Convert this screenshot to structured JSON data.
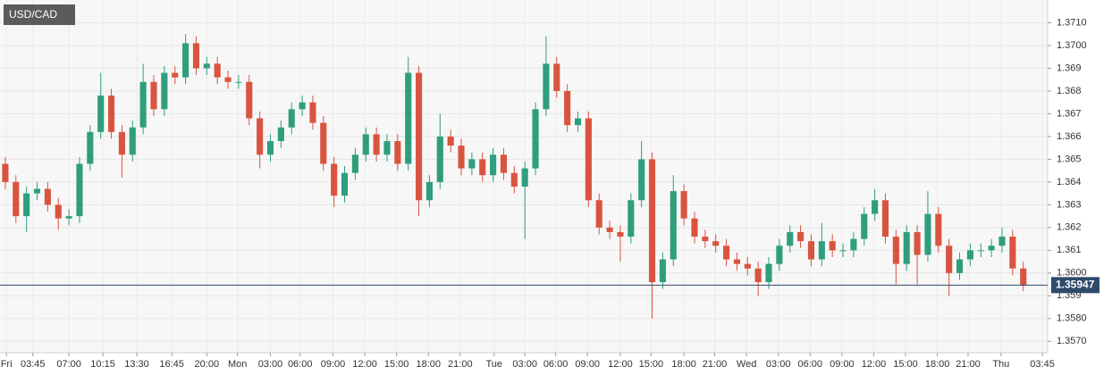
{
  "chart_data": {
    "type": "candlestick",
    "title": "USD/CAD",
    "up_color": "#2f9e7c",
    "down_color": "#d9543f",
    "grid": true,
    "last_price": 1.35947,
    "last_price_color": "#2e4a6b",
    "ylim": [
      1.3565,
      1.372
    ],
    "yticks": [
      {
        "value": 1.357,
        "label": "1.3570"
      },
      {
        "value": 1.358,
        "label": "1.3580"
      },
      1.359,
      {
        "value": 1.36,
        "label": "1.3600"
      },
      1.361,
      1.362,
      1.363,
      1.364,
      1.365,
      1.366,
      1.367,
      1.368,
      1.369,
      {
        "value": 1.37,
        "label": "1.3700"
      },
      {
        "value": 1.371,
        "label": "1.3710"
      }
    ],
    "xlim": [
      0,
      98.8
    ],
    "xticks": [
      {
        "value": 0.6,
        "label": "Fri"
      },
      {
        "value": 3.1,
        "label": "03:45"
      },
      {
        "value": 6.5,
        "label": "07:00"
      },
      {
        "value": 9.7,
        "label": "10:15"
      },
      {
        "value": 12.9,
        "label": "13:30"
      },
      {
        "value": 16.2,
        "label": "16:45"
      },
      {
        "value": 19.5,
        "label": "20:00"
      },
      {
        "value": 22.4,
        "label": "Mon"
      },
      {
        "value": 25.5,
        "label": "03:00"
      },
      {
        "value": 28.3,
        "label": "06:00"
      },
      {
        "value": 31.4,
        "label": "09:00"
      },
      {
        "value": 34.4,
        "label": "12:00"
      },
      {
        "value": 37.4,
        "label": "15:00"
      },
      {
        "value": 40.4,
        "label": "18:00"
      },
      {
        "value": 43.4,
        "label": "21:00"
      },
      {
        "value": 46.6,
        "label": "Tue"
      },
      {
        "value": 49.5,
        "label": "03:00"
      },
      {
        "value": 52.4,
        "label": "06:00"
      },
      {
        "value": 55.4,
        "label": "09:00"
      },
      {
        "value": 58.5,
        "label": "12:00"
      },
      {
        "value": 61.4,
        "label": "15:00"
      },
      {
        "value": 64.5,
        "label": "18:00"
      },
      {
        "value": 67.4,
        "label": "21:00"
      },
      {
        "value": 70.4,
        "label": "Wed"
      },
      {
        "value": 73.4,
        "label": "03:00"
      },
      {
        "value": 76.4,
        "label": "06:00"
      },
      {
        "value": 79.4,
        "label": "09:00"
      },
      {
        "value": 82.4,
        "label": "12:00"
      },
      {
        "value": 85.4,
        "label": "15:00"
      },
      {
        "value": 88.4,
        "label": "18:00"
      },
      {
        "value": 91.3,
        "label": "21:00"
      },
      {
        "value": 94.4,
        "label": "Thu"
      },
      {
        "value": 98.3,
        "label": "03:45"
      }
    ],
    "open": [
      1.3648,
      1.364,
      1.3625,
      1.3635,
      1.3637,
      1.363,
      1.3624,
      1.3625,
      1.3648,
      1.3662,
      1.3678,
      1.3662,
      1.3652,
      1.3664,
      1.3684,
      1.3672,
      1.3688,
      1.3686,
      1.3701,
      1.369,
      1.3692,
      1.3686,
      1.3684,
      1.3684,
      1.3668,
      1.3652,
      1.3658,
      1.3664,
      1.3672,
      1.3675,
      1.3666,
      1.3648,
      1.3634,
      1.3644,
      1.3652,
      1.3661,
      1.3652,
      1.3658,
      1.3648,
      1.3688,
      1.3632,
      1.364,
      1.366,
      1.3656,
      1.3646,
      1.365,
      1.3643,
      1.3652,
      1.3644,
      1.3638,
      1.3646,
      1.3672,
      1.3692,
      1.368,
      1.3665,
      1.3668,
      1.3632,
      1.362,
      1.3618,
      1.3616,
      1.3632,
      1.365,
      1.3596,
      1.3606,
      1.3636,
      1.3624,
      1.3616,
      1.3614,
      1.3612,
      1.3606,
      1.3604,
      1.3602,
      1.3596,
      1.3604,
      1.3612,
      1.3618,
      1.3614,
      1.3606,
      1.3614,
      1.361,
      1.361,
      1.3615,
      1.3626,
      1.3632,
      1.3616,
      1.3604,
      1.3618,
      1.3608,
      1.3626,
      1.3612,
      1.36,
      1.3606,
      1.361,
      1.361,
      1.3612,
      1.3616,
      1.3602
    ],
    "high": [
      1.3651,
      1.3643,
      1.3638,
      1.364,
      1.364,
      1.3633,
      1.3628,
      1.3651,
      1.3665,
      1.3688,
      1.3681,
      1.3665,
      1.3667,
      1.3692,
      1.3687,
      1.3691,
      1.3691,
      1.3705,
      1.3704,
      1.3695,
      1.3695,
      1.3689,
      1.3687,
      1.3687,
      1.3671,
      1.3661,
      1.3667,
      1.3675,
      1.3678,
      1.3678,
      1.3669,
      1.3651,
      1.3647,
      1.3655,
      1.3664,
      1.3664,
      1.3661,
      1.3661,
      1.3695,
      1.3691,
      1.3643,
      1.367,
      1.3663,
      1.3659,
      1.3653,
      1.3653,
      1.3655,
      1.3655,
      1.3647,
      1.3649,
      1.3675,
      1.3704,
      1.3695,
      1.3683,
      1.3671,
      1.3671,
      1.3635,
      1.3623,
      1.3621,
      1.3635,
      1.3658,
      1.3653,
      1.3609,
      1.3643,
      1.3639,
      1.3627,
      1.3619,
      1.3617,
      1.3615,
      1.3609,
      1.3607,
      1.3605,
      1.3607,
      1.3615,
      1.3621,
      1.3621,
      1.3617,
      1.3622,
      1.3617,
      1.3613,
      1.3618,
      1.3629,
      1.3637,
      1.3635,
      1.3619,
      1.3621,
      1.3621,
      1.3636,
      1.3629,
      1.3615,
      1.3609,
      1.3613,
      1.3613,
      1.3615,
      1.362,
      1.3619,
      1.3605
    ],
    "low": [
      1.3637,
      1.3622,
      1.3618,
      1.3632,
      1.3627,
      1.3619,
      1.3621,
      1.3622,
      1.3645,
      1.3659,
      1.3659,
      1.3642,
      1.3649,
      1.3661,
      1.3669,
      1.3669,
      1.3683,
      1.3683,
      1.3687,
      1.3687,
      1.3683,
      1.3681,
      1.3681,
      1.3665,
      1.3646,
      1.3649,
      1.3655,
      1.3661,
      1.3669,
      1.3663,
      1.3645,
      1.3629,
      1.3631,
      1.3641,
      1.3649,
      1.3649,
      1.3649,
      1.3645,
      1.3645,
      1.3625,
      1.3629,
      1.3637,
      1.3653,
      1.3643,
      1.3643,
      1.364,
      1.364,
      1.3641,
      1.3635,
      1.3615,
      1.3643,
      1.3669,
      1.3677,
      1.3662,
      1.3662,
      1.3629,
      1.3617,
      1.3615,
      1.3605,
      1.3613,
      1.3629,
      1.358,
      1.3593,
      1.3603,
      1.3621,
      1.3613,
      1.3611,
      1.3609,
      1.3603,
      1.3601,
      1.3599,
      1.359,
      1.3593,
      1.3601,
      1.3609,
      1.3611,
      1.3603,
      1.3603,
      1.3607,
      1.3607,
      1.3607,
      1.3612,
      1.3623,
      1.3613,
      1.3595,
      1.3601,
      1.3595,
      1.3605,
      1.3609,
      1.359,
      1.3597,
      1.3603,
      1.3607,
      1.3607,
      1.3609,
      1.3599,
      1.3592
    ],
    "close": [
      1.364,
      1.3625,
      1.3635,
      1.3637,
      1.363,
      1.3624,
      1.3625,
      1.3648,
      1.3662,
      1.3678,
      1.3662,
      1.3652,
      1.3664,
      1.3684,
      1.3672,
      1.3688,
      1.3686,
      1.3701,
      1.369,
      1.3692,
      1.3686,
      1.3684,
      1.3684,
      1.3668,
      1.3652,
      1.3658,
      1.3664,
      1.3672,
      1.3675,
      1.3666,
      1.3648,
      1.3634,
      1.3644,
      1.3652,
      1.3661,
      1.3652,
      1.3658,
      1.3648,
      1.3688,
      1.3632,
      1.364,
      1.366,
      1.3656,
      1.3646,
      1.365,
      1.3643,
      1.3652,
      1.3644,
      1.3638,
      1.3646,
      1.3672,
      1.3692,
      1.368,
      1.3665,
      1.3668,
      1.3632,
      1.362,
      1.3618,
      1.3616,
      1.3632,
      1.365,
      1.3596,
      1.3606,
      1.3636,
      1.3624,
      1.3616,
      1.3614,
      1.3612,
      1.3606,
      1.3604,
      1.3602,
      1.3596,
      1.3604,
      1.3612,
      1.3618,
      1.3614,
      1.3606,
      1.3614,
      1.361,
      1.361,
      1.3615,
      1.3626,
      1.3632,
      1.3616,
      1.3604,
      1.3618,
      1.3608,
      1.3626,
      1.3612,
      1.36,
      1.3606,
      1.361,
      1.361,
      1.3612,
      1.3616,
      1.3602,
      1.35947
    ]
  }
}
